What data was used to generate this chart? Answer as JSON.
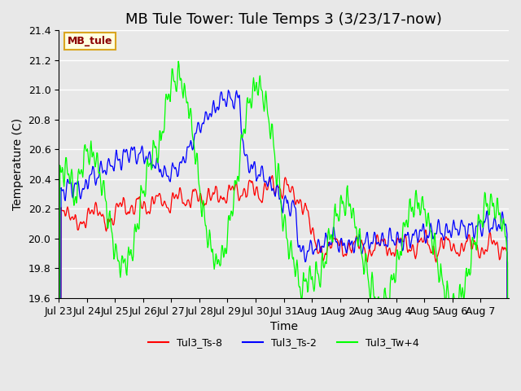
{
  "title": "MB Tule Tower: Tule Temps 3 (3/23/17-now)",
  "xlabel": "Time",
  "ylabel": "Temperature (C)",
  "ylim": [
    19.6,
    21.4
  ],
  "bg_color": "#e8e8e8",
  "legend_label": "MB_tule",
  "series_labels": [
    "Tul3_Ts-8",
    "Tul3_Ts-2",
    "Tul3_Tw+4"
  ],
  "series_colors": [
    "red",
    "blue",
    "lime"
  ],
  "xtick_labels": [
    "Jul 23",
    "Jul 24",
    "Jul 25",
    "Jul 26",
    "Jul 27",
    "Jul 28",
    "Jul 29",
    "Jul 30",
    "Jul 31",
    "Aug 1",
    "Aug 2",
    "Aug 3",
    "Aug 4",
    "Aug 5",
    "Aug 6",
    "Aug 7"
  ],
  "ytick_labels": [
    "19.6",
    "19.8",
    "20.0",
    "20.2",
    "20.4",
    "20.6",
    "20.8",
    "21.0",
    "21.2",
    "21.4"
  ],
  "ytick_vals": [
    19.6,
    19.8,
    20.0,
    20.2,
    20.4,
    20.6,
    20.8,
    21.0,
    21.2,
    21.4
  ],
  "n_days": 16,
  "title_fontsize": 13,
  "axis_fontsize": 10,
  "tick_fontsize": 9
}
